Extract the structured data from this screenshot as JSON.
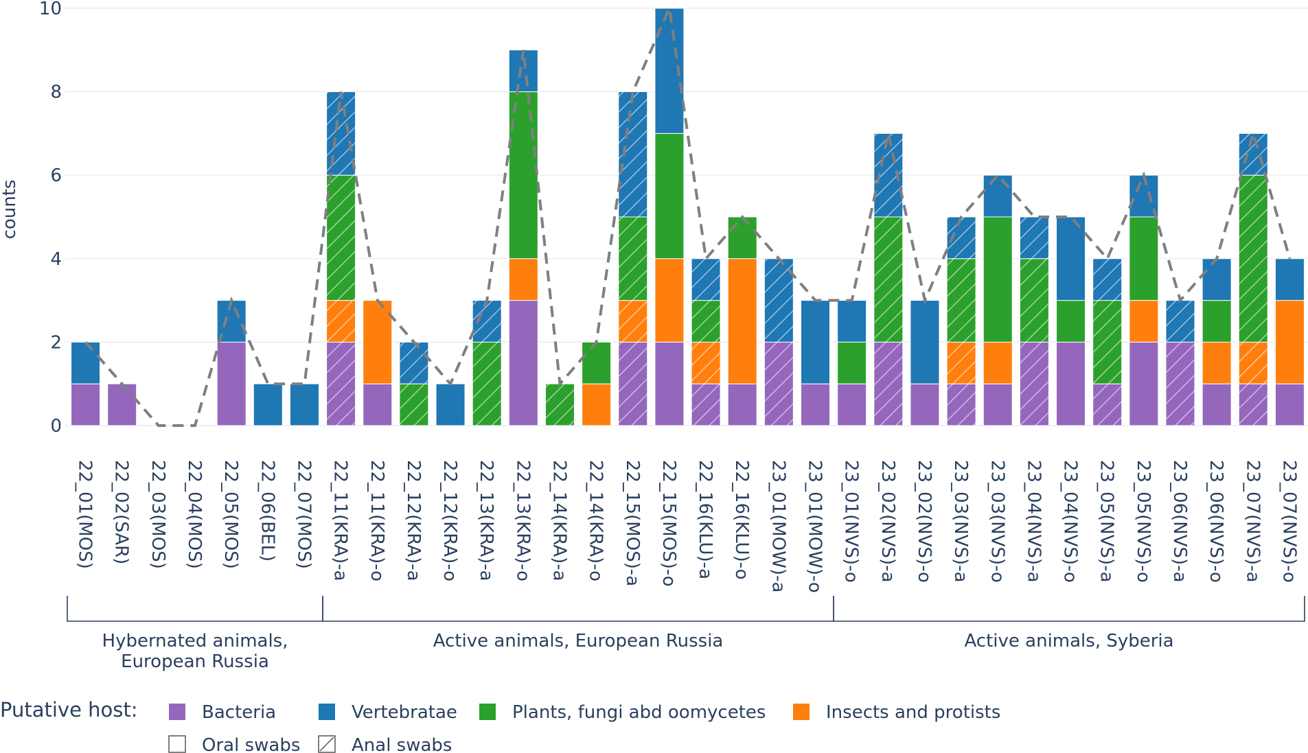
{
  "chart_data": {
    "type": "bar",
    "stacked": true,
    "ylabel": "counts",
    "ylim": [
      0,
      10
    ],
    "yticks": [
      0,
      2,
      4,
      6,
      8,
      10
    ],
    "categories": [
      "22_01(MOS)",
      "22_02(SAR)",
      "22_03(MOS)",
      "22_04(MOS)",
      "22_05(MOS)",
      "22_06(BEL)",
      "22_07(MOS)",
      "22_11(KRA)-a",
      "22_11(KRA)-o",
      "22_12(KRA)-a",
      "22_12(KRA)-o",
      "22_13(KRA)-a",
      "22_13(KRA)-o",
      "22_14(KRA)-a",
      "22_14(KRA)-o",
      "22_15(MOS)-a",
      "22_15(MOS)-o",
      "22_16(KLU)-a",
      "22_16(KLU)-o",
      "23_01(MOW)-a",
      "23_01(MOW)-o",
      "23_01(NVS)-o",
      "23_02(NVS)-a",
      "23_02(NVS)-o",
      "23_03(NVS)-a",
      "23_03(NVS)-o",
      "23_04(NVS)-a",
      "23_04(NVS)-o",
      "23_05(NVS)-a",
      "23_05(NVS)-o",
      "23_06(NVS)-a",
      "23_06(NVS)-o",
      "23_07(NVS)-a",
      "23_07(NVS)-o"
    ],
    "series": [
      {
        "name": "Bacteria",
        "color": "#9467bd",
        "values": [
          1,
          1,
          0,
          0,
          2,
          0,
          0,
          2,
          1,
          0,
          0,
          0,
          3,
          0,
          0,
          2,
          2,
          1,
          1,
          2,
          1,
          1,
          2,
          1,
          1,
          1,
          2,
          2,
          1,
          2,
          2,
          1,
          1,
          1
        ]
      },
      {
        "name": "Insects and protists",
        "color": "#ff7f0e",
        "values": [
          0,
          0,
          0,
          0,
          0,
          0,
          0,
          1,
          2,
          0,
          0,
          0,
          1,
          0,
          1,
          1,
          2,
          1,
          3,
          0,
          0,
          0,
          0,
          0,
          1,
          1,
          0,
          0,
          0,
          1,
          0,
          1,
          1,
          2
        ]
      },
      {
        "name": "Plants, fungi abd oomycetes",
        "color": "#2ca02c",
        "values": [
          0,
          0,
          0,
          0,
          0,
          0,
          0,
          3,
          0,
          1,
          0,
          2,
          4,
          1,
          1,
          2,
          3,
          1,
          1,
          0,
          0,
          1,
          3,
          0,
          2,
          3,
          2,
          1,
          2,
          2,
          0,
          1,
          4,
          0
        ]
      },
      {
        "name": "Vertebratae",
        "color": "#1f77b4",
        "values": [
          1,
          0,
          0,
          0,
          1,
          1,
          1,
          2,
          0,
          1,
          1,
          1,
          1,
          0,
          0,
          3,
          3,
          1,
          0,
          2,
          2,
          1,
          2,
          2,
          1,
          1,
          1,
          2,
          1,
          1,
          1,
          1,
          1,
          1
        ]
      }
    ],
    "hatched": [
      false,
      false,
      false,
      false,
      false,
      false,
      false,
      true,
      false,
      true,
      false,
      true,
      false,
      true,
      false,
      true,
      false,
      true,
      false,
      true,
      false,
      false,
      true,
      false,
      true,
      false,
      true,
      false,
      true,
      false,
      true,
      false,
      true,
      false
    ],
    "totals_line": [
      2,
      1,
      0,
      0,
      3,
      1,
      1,
      8,
      3,
      2,
      1,
      3,
      9,
      1,
      2,
      8,
      10,
      4,
      5,
      4,
      3,
      3,
      7,
      3,
      5,
      6,
      5,
      5,
      4,
      6,
      3,
      4,
      7,
      4
    ],
    "groups": [
      {
        "label_line1": "Hybernated animals,",
        "label_line2": "European Russia",
        "start": 0,
        "end": 6
      },
      {
        "label_line1": "Active animals, European Russia",
        "label_line2": "",
        "start": 7,
        "end": 20
      },
      {
        "label_line1": "Active animals, Syberia",
        "label_line2": "",
        "start": 21,
        "end": 33
      }
    ],
    "legend": {
      "title": "Putative host:",
      "items": [
        "Bacteria",
        "Vertebratae",
        "Plants, fungi abd oomycetes",
        "Insects and protists"
      ],
      "pattern_items": [
        "Oral swabs",
        "Anal swabs"
      ]
    }
  }
}
